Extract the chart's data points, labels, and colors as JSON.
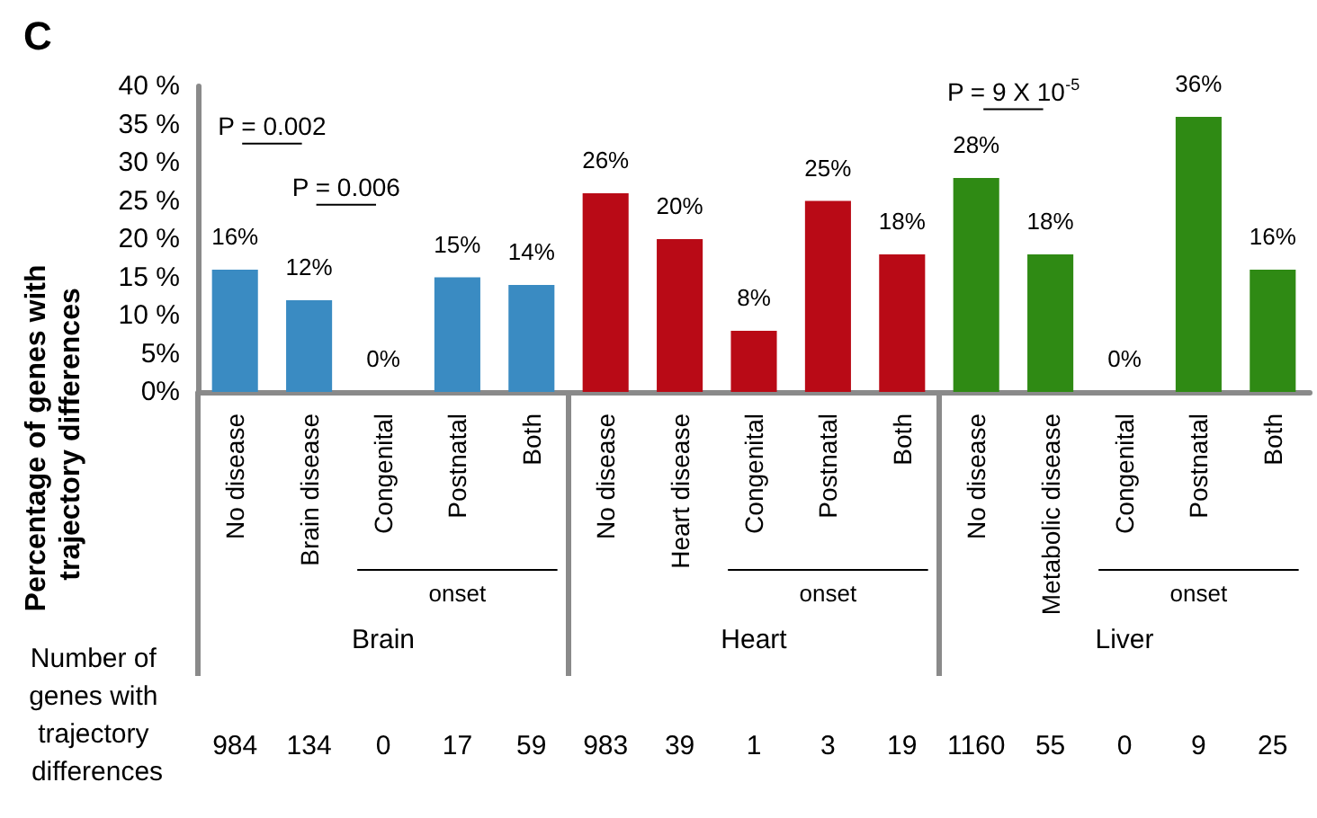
{
  "chart_data": {
    "type": "bar",
    "title": "C",
    "ylabel": "Percentage of genes with trajectory differences",
    "categories": [
      "No disease",
      "Brain disease",
      "Congenital",
      "Postnatal",
      "Both",
      "No disease",
      "Heart disease",
      "Congenital",
      "Postnatal",
      "Both",
      "No disease",
      "Metabolic disease",
      "Congenital",
      "Postnatal",
      "Both"
    ],
    "values": [
      16,
      12,
      0,
      15,
      14,
      26,
      20,
      8,
      25,
      18,
      28,
      18,
      0,
      36,
      16
    ],
    "value_labels": [
      "16%",
      "12%",
      "0%",
      "15%",
      "14%",
      "26%",
      "20%",
      "8%",
      "25%",
      "18%",
      "28%",
      "18%",
      "0%",
      "36%",
      "16%"
    ],
    "colors": [
      "#3a8bc2",
      "#3a8bc2",
      "#3a8bc2",
      "#3a8bc2",
      "#3a8bc2",
      "#b90a16",
      "#b90a16",
      "#b90a16",
      "#b90a16",
      "#b90a16",
      "#2f8a14",
      "#2f8a14",
      "#2f8a14",
      "#2f8a14",
      "#2f8a14"
    ],
    "ylim": [
      0,
      40
    ],
    "yticks": [
      {
        "value": 0,
        "label": "0%"
      },
      {
        "value": 5,
        "label": "5%"
      },
      {
        "value": 10,
        "label": "10 %"
      },
      {
        "value": 15,
        "label": "15 %"
      },
      {
        "value": 20,
        "label": "20 %"
      },
      {
        "value": 25,
        "label": "25 %"
      },
      {
        "value": 30,
        "label": "30 %"
      },
      {
        "value": 35,
        "label": "35 %"
      },
      {
        "value": 40,
        "label": "40 %"
      }
    ],
    "grid": false,
    "annotations": [
      "P = 0.002",
      "P = 0.006",
      "P = 9 X 10$^{-5}$",
      "onset",
      "onset",
      "onset",
      "Brain",
      "Heart",
      "Liver",
      "Number of genes with trajectory differences",
      "984",
      "134",
      "0",
      "17",
      "59",
      "983",
      "39",
      "1",
      "3",
      "19",
      "1160",
      "55",
      "0",
      "9",
      "25"
    ]
  }
}
